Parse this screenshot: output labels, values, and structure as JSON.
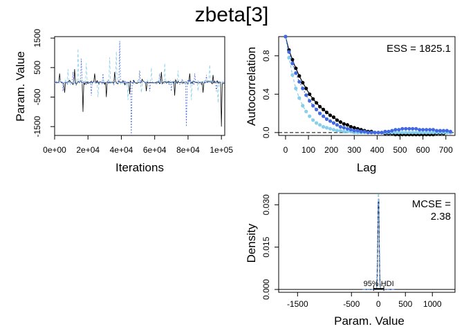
{
  "title": "zbeta[3]",
  "colors": {
    "chain1": "#000000",
    "chain2": "#87ceeb",
    "chain3": "#4169e1",
    "refline": "#000000"
  },
  "chart_data": [
    {
      "id": "trace",
      "type": "line",
      "xlabel": "Iterations",
      "ylabel": "Param. Value",
      "xlim": [
        0,
        102000
      ],
      "ylim": [
        -1800,
        1550
      ],
      "xticks": [
        0,
        20000,
        40000,
        60000,
        80000,
        100000
      ],
      "xtick_labels": [
        "0e+00",
        "2e+04",
        "4e+04",
        "6e+04",
        "8e+04",
        "1e+05"
      ],
      "yticks": [
        -1500,
        -500,
        500,
        1500
      ],
      "ytick_labels": [
        "-1500",
        "-500",
        "500",
        "1500"
      ],
      "baseline": 0,
      "noise_range": [
        -150,
        150
      ],
      "series": [
        {
          "chain": 1,
          "spikes": [
            [
              3000,
              300
            ],
            [
              6000,
              -350
            ],
            [
              12000,
              450
            ],
            [
              17000,
              -1000
            ],
            [
              24000,
              300
            ],
            [
              31000,
              -500
            ],
            [
              36000,
              350
            ],
            [
              45000,
              -400
            ],
            [
              55000,
              -300
            ],
            [
              64000,
              350
            ],
            [
              72000,
              -450
            ],
            [
              81000,
              300
            ],
            [
              89000,
              -350
            ],
            [
              95000,
              250
            ],
            [
              100000,
              -1500
            ]
          ]
        },
        {
          "chain": 2,
          "spikes": [
            [
              8000,
              450
            ],
            [
              14000,
              1150
            ],
            [
              19000,
              650
            ],
            [
              26000,
              -500
            ],
            [
              33000,
              850
            ],
            [
              37000,
              1050
            ],
            [
              44000,
              -600
            ],
            [
              52000,
              -350
            ],
            [
              58000,
              500
            ],
            [
              66000,
              650
            ],
            [
              74000,
              400
            ],
            [
              82000,
              -600
            ],
            [
              86000,
              -300
            ],
            [
              93000,
              600
            ],
            [
              98000,
              -700
            ]
          ]
        },
        {
          "chain": 3,
          "spikes": [
            [
              5000,
              -300
            ],
            [
              11000,
              350
            ],
            [
              16000,
              800
            ],
            [
              22000,
              -450
            ],
            [
              29000,
              300
            ],
            [
              39000,
              1400
            ],
            [
              46000,
              -1800
            ],
            [
              51000,
              400
            ],
            [
              57000,
              -300
            ],
            [
              63000,
              300
            ],
            [
              70000,
              -300
            ],
            [
              79000,
              -1500
            ],
            [
              84000,
              300
            ],
            [
              91000,
              250
            ],
            [
              97000,
              -300
            ]
          ]
        }
      ]
    },
    {
      "id": "acf",
      "type": "line",
      "xlabel": "Lag",
      "ylabel": "Autocorrelation",
      "xlim": [
        -30,
        740
      ],
      "ylim": [
        -0.03,
        1.0
      ],
      "xticks": [
        0,
        100,
        200,
        300,
        400,
        500,
        600,
        700
      ],
      "yticks": [
        0.0,
        0.4,
        0.8
      ],
      "ytick_labels": [
        "0.0",
        "0.4",
        "0.8"
      ],
      "annotation": "ESS = 1825.1",
      "refline": 0,
      "lags": [
        0,
        15,
        30,
        45,
        60,
        75,
        90,
        105,
        120,
        135,
        150,
        165,
        180,
        195,
        210,
        225,
        240,
        255,
        270,
        285,
        300,
        315,
        330,
        345,
        360,
        375,
        390,
        405,
        420,
        435,
        450,
        465,
        480,
        495,
        510,
        525,
        540,
        555,
        570,
        585,
        600,
        615,
        630,
        645,
        660,
        675,
        690,
        705,
        720
      ],
      "series": [
        {
          "chain": 1,
          "values": [
            1.0,
            0.86,
            0.76,
            0.67,
            0.59,
            0.52,
            0.46,
            0.4,
            0.35,
            0.31,
            0.27,
            0.24,
            0.21,
            0.18,
            0.16,
            0.13,
            0.11,
            0.09,
            0.08,
            0.06,
            0.05,
            0.04,
            0.03,
            0.02,
            0.01,
            0.01,
            0.0,
            0.0,
            0.0,
            -0.01,
            -0.01,
            -0.01,
            -0.02,
            -0.02,
            -0.02,
            -0.02,
            -0.02,
            -0.02,
            -0.02,
            -0.02,
            -0.02,
            -0.02,
            -0.02,
            -0.02,
            -0.01,
            -0.01,
            -0.01,
            0.0,
            0.0
          ]
        },
        {
          "chain": 2,
          "values": [
            1.0,
            0.78,
            0.6,
            0.46,
            0.36,
            0.28,
            0.22,
            0.17,
            0.13,
            0.1,
            0.08,
            0.06,
            0.05,
            0.04,
            0.03,
            0.02,
            0.02,
            0.01,
            0.01,
            0.01,
            0.0,
            0.0,
            0.0,
            0.0,
            0.0,
            0.0,
            0.0,
            0.0,
            0.0,
            0.0,
            0.0,
            0.0,
            0.0,
            0.0,
            0.0,
            0.0,
            0.0,
            0.0,
            0.0,
            0.0,
            0.0,
            0.0,
            0.0,
            0.0,
            0.0,
            0.0,
            0.0,
            0.0,
            0.0
          ]
        },
        {
          "chain": 3,
          "values": [
            1.0,
            0.84,
            0.72,
            0.62,
            0.53,
            0.46,
            0.39,
            0.33,
            0.28,
            0.24,
            0.2,
            0.17,
            0.14,
            0.12,
            0.1,
            0.08,
            0.06,
            0.05,
            0.04,
            0.03,
            0.02,
            0.02,
            0.01,
            0.01,
            0.0,
            0.0,
            0.0,
            0.0,
            0.0,
            0.01,
            0.01,
            0.02,
            0.03,
            0.03,
            0.04,
            0.04,
            0.04,
            0.04,
            0.04,
            0.03,
            0.03,
            0.03,
            0.03,
            0.03,
            0.02,
            0.02,
            0.02,
            0.02,
            0.01
          ]
        }
      ]
    },
    {
      "id": "density",
      "type": "line",
      "xlabel": "Param. Value",
      "ylabel": "Density",
      "xlim": [
        -1850,
        1420
      ],
      "ylim": [
        -0.001,
        0.034
      ],
      "xticks": [
        -1500,
        -500,
        0,
        500,
        1000
      ],
      "xtick_labels": [
        "-1500",
        "-500",
        "0",
        "500",
        "1000"
      ],
      "yticks": [
        0.0,
        0.015,
        0.03
      ],
      "ytick_labels": [
        "0.000",
        "0.015",
        "0.030"
      ],
      "annotation_line1": "MCSE =",
      "annotation_line2": "2.38",
      "hdi_label": "95% HDI",
      "hdi": [
        -90,
        100
      ],
      "series": [
        {
          "chain": 1,
          "peak": 0.032,
          "center": 2,
          "sd": 12
        },
        {
          "chain": 2,
          "peak": 0.034,
          "center": 0,
          "sd": 11
        },
        {
          "chain": 3,
          "peak": 0.031,
          "center": -2,
          "sd": 13
        }
      ]
    }
  ]
}
